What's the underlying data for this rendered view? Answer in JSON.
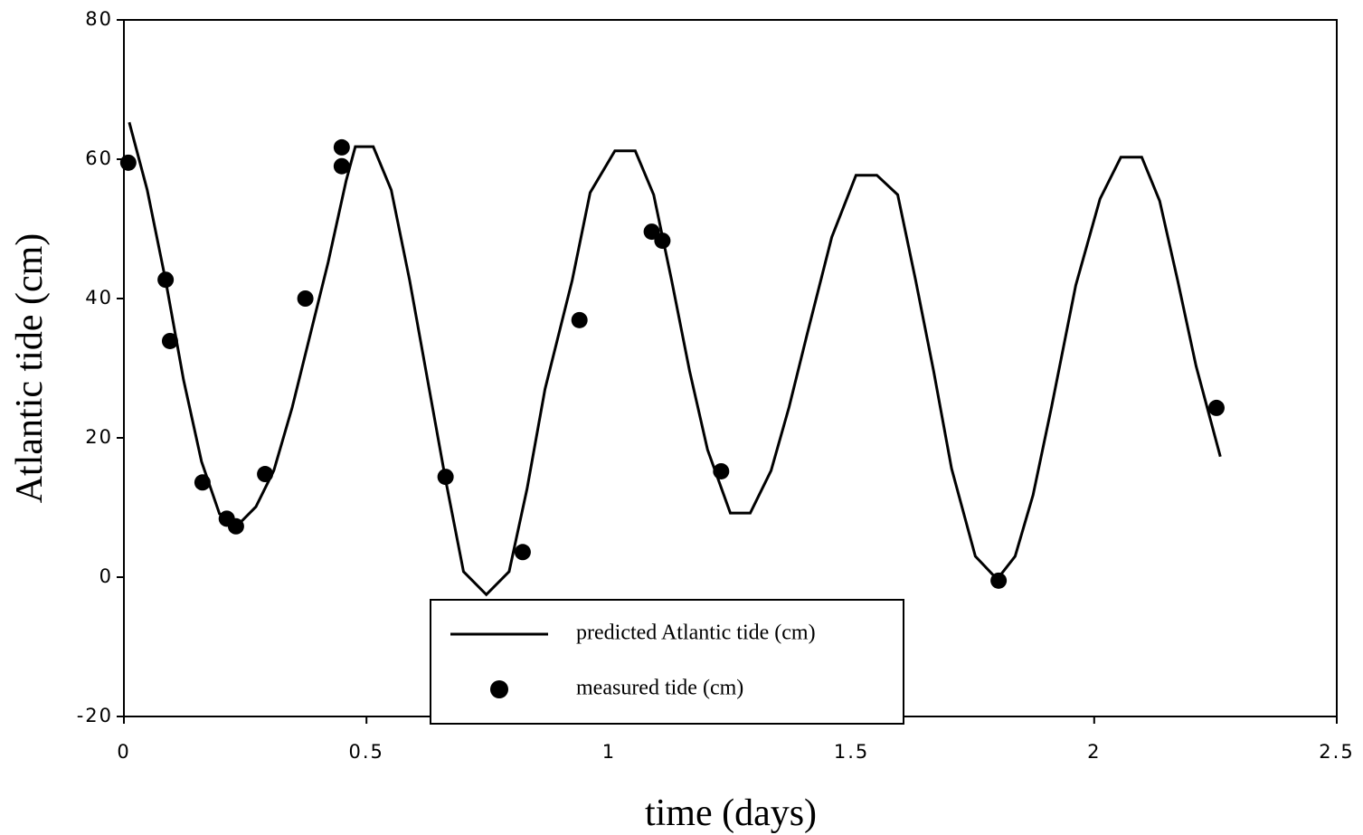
{
  "chart_data": {
    "type": "line",
    "xlabel": "time (days)",
    "ylabel": "Atlantic tide (cm)",
    "xlim": [
      0,
      2.5
    ],
    "xticks": [
      0,
      0.5,
      1,
      1.5,
      2,
      2.5
    ],
    "ylim": [
      -20,
      80
    ],
    "yticks": [
      -20,
      0,
      20,
      40,
      60,
      80
    ],
    "legend": "lower center",
    "series": [
      {
        "name": "predicted Atlantic tide (cm)",
        "style": "line",
        "color": "#000000",
        "x": [
          0.011,
          0.048,
          0.086,
          0.123,
          0.16,
          0.197,
          0.235,
          0.272,
          0.309,
          0.347,
          0.384,
          0.421,
          0.458,
          0.477,
          0.514,
          0.551,
          0.589,
          0.626,
          0.663,
          0.7,
          0.747,
          0.794,
          0.831,
          0.868,
          0.924,
          0.961,
          1.012,
          1.054,
          1.092,
          1.129,
          1.166,
          1.203,
          1.25,
          1.291,
          1.334,
          1.371,
          1.408,
          1.459,
          1.509,
          1.552,
          1.595,
          1.632,
          1.669,
          1.706,
          1.755,
          1.8,
          1.837,
          1.874,
          1.912,
          1.962,
          2.012,
          2.055,
          2.098,
          2.135,
          2.172,
          2.21,
          2.26
        ],
        "values": [
          65.3,
          55.6,
          42.6,
          28.3,
          16.6,
          9.1,
          7.5,
          10.1,
          15.3,
          24.4,
          34.8,
          45.2,
          56.9,
          61.8,
          61.8,
          55.6,
          42.6,
          28.3,
          14.0,
          0.8,
          -2.5,
          0.8,
          12.7,
          27.0,
          42.6,
          55.2,
          61.2,
          61.2,
          54.9,
          42.6,
          29.6,
          18.3,
          9.2,
          9.2,
          15.3,
          24.4,
          34.8,
          48.8,
          57.7,
          57.7,
          54.9,
          42.6,
          29.6,
          15.6,
          3.0,
          -0.3,
          3.0,
          11.8,
          24.4,
          41.9,
          54.3,
          60.3,
          60.3,
          54.0,
          42.6,
          30.3,
          17.3
        ]
      },
      {
        "name": "measured tide (cm)",
        "style": "marker",
        "color": "#000000",
        "x": [
          0.009,
          0.086,
          0.095,
          0.162,
          0.212,
          0.231,
          0.291,
          0.374,
          0.449,
          0.449,
          0.663,
          0.822,
          0.939,
          1.088,
          1.11,
          1.231,
          1.803,
          2.252
        ],
        "values": [
          59.5,
          42.7,
          33.9,
          13.6,
          8.4,
          7.3,
          14.8,
          40.0,
          61.7,
          59.0,
          14.4,
          3.6,
          36.9,
          49.6,
          48.3,
          15.2,
          -0.5,
          24.3
        ]
      }
    ]
  }
}
